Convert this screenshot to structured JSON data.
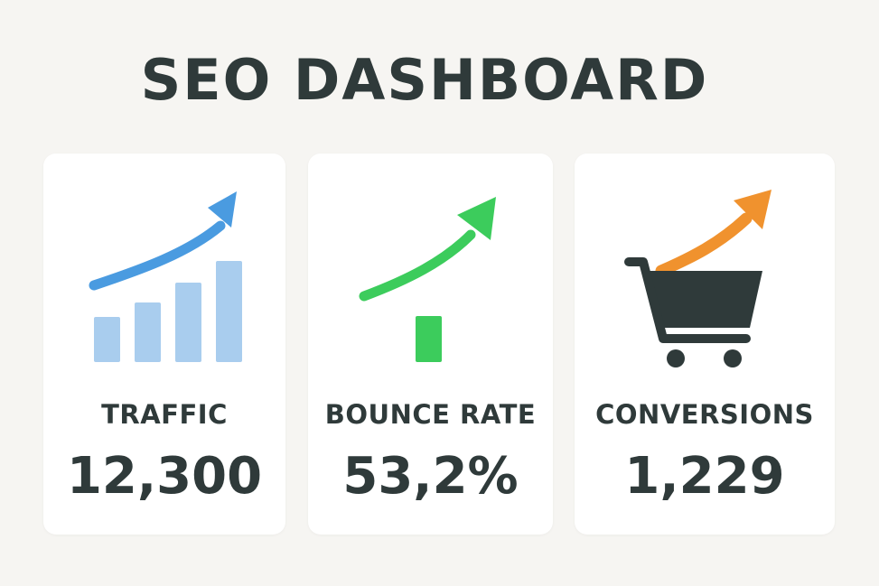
{
  "dashboard": {
    "title": "SEO DASHBOARD",
    "cards": [
      {
        "label": "TRAFFIC",
        "value": "12,300",
        "icon": "bar-chart-growth-icon",
        "accent": "#4a9be0",
        "bar_color": "#a9cdee"
      },
      {
        "label": "BOUNCE RATE",
        "value": "53,2%",
        "icon": "trend-up-arrow-icon",
        "accent": "#3ccc5c",
        "bar_color": "#3ccc5c"
      },
      {
        "label": "CONVERSIONS",
        "value": "1,229",
        "icon": "shopping-cart-icon",
        "accent": "#f0922e",
        "cart_color": "#2f3a3a"
      }
    ]
  }
}
